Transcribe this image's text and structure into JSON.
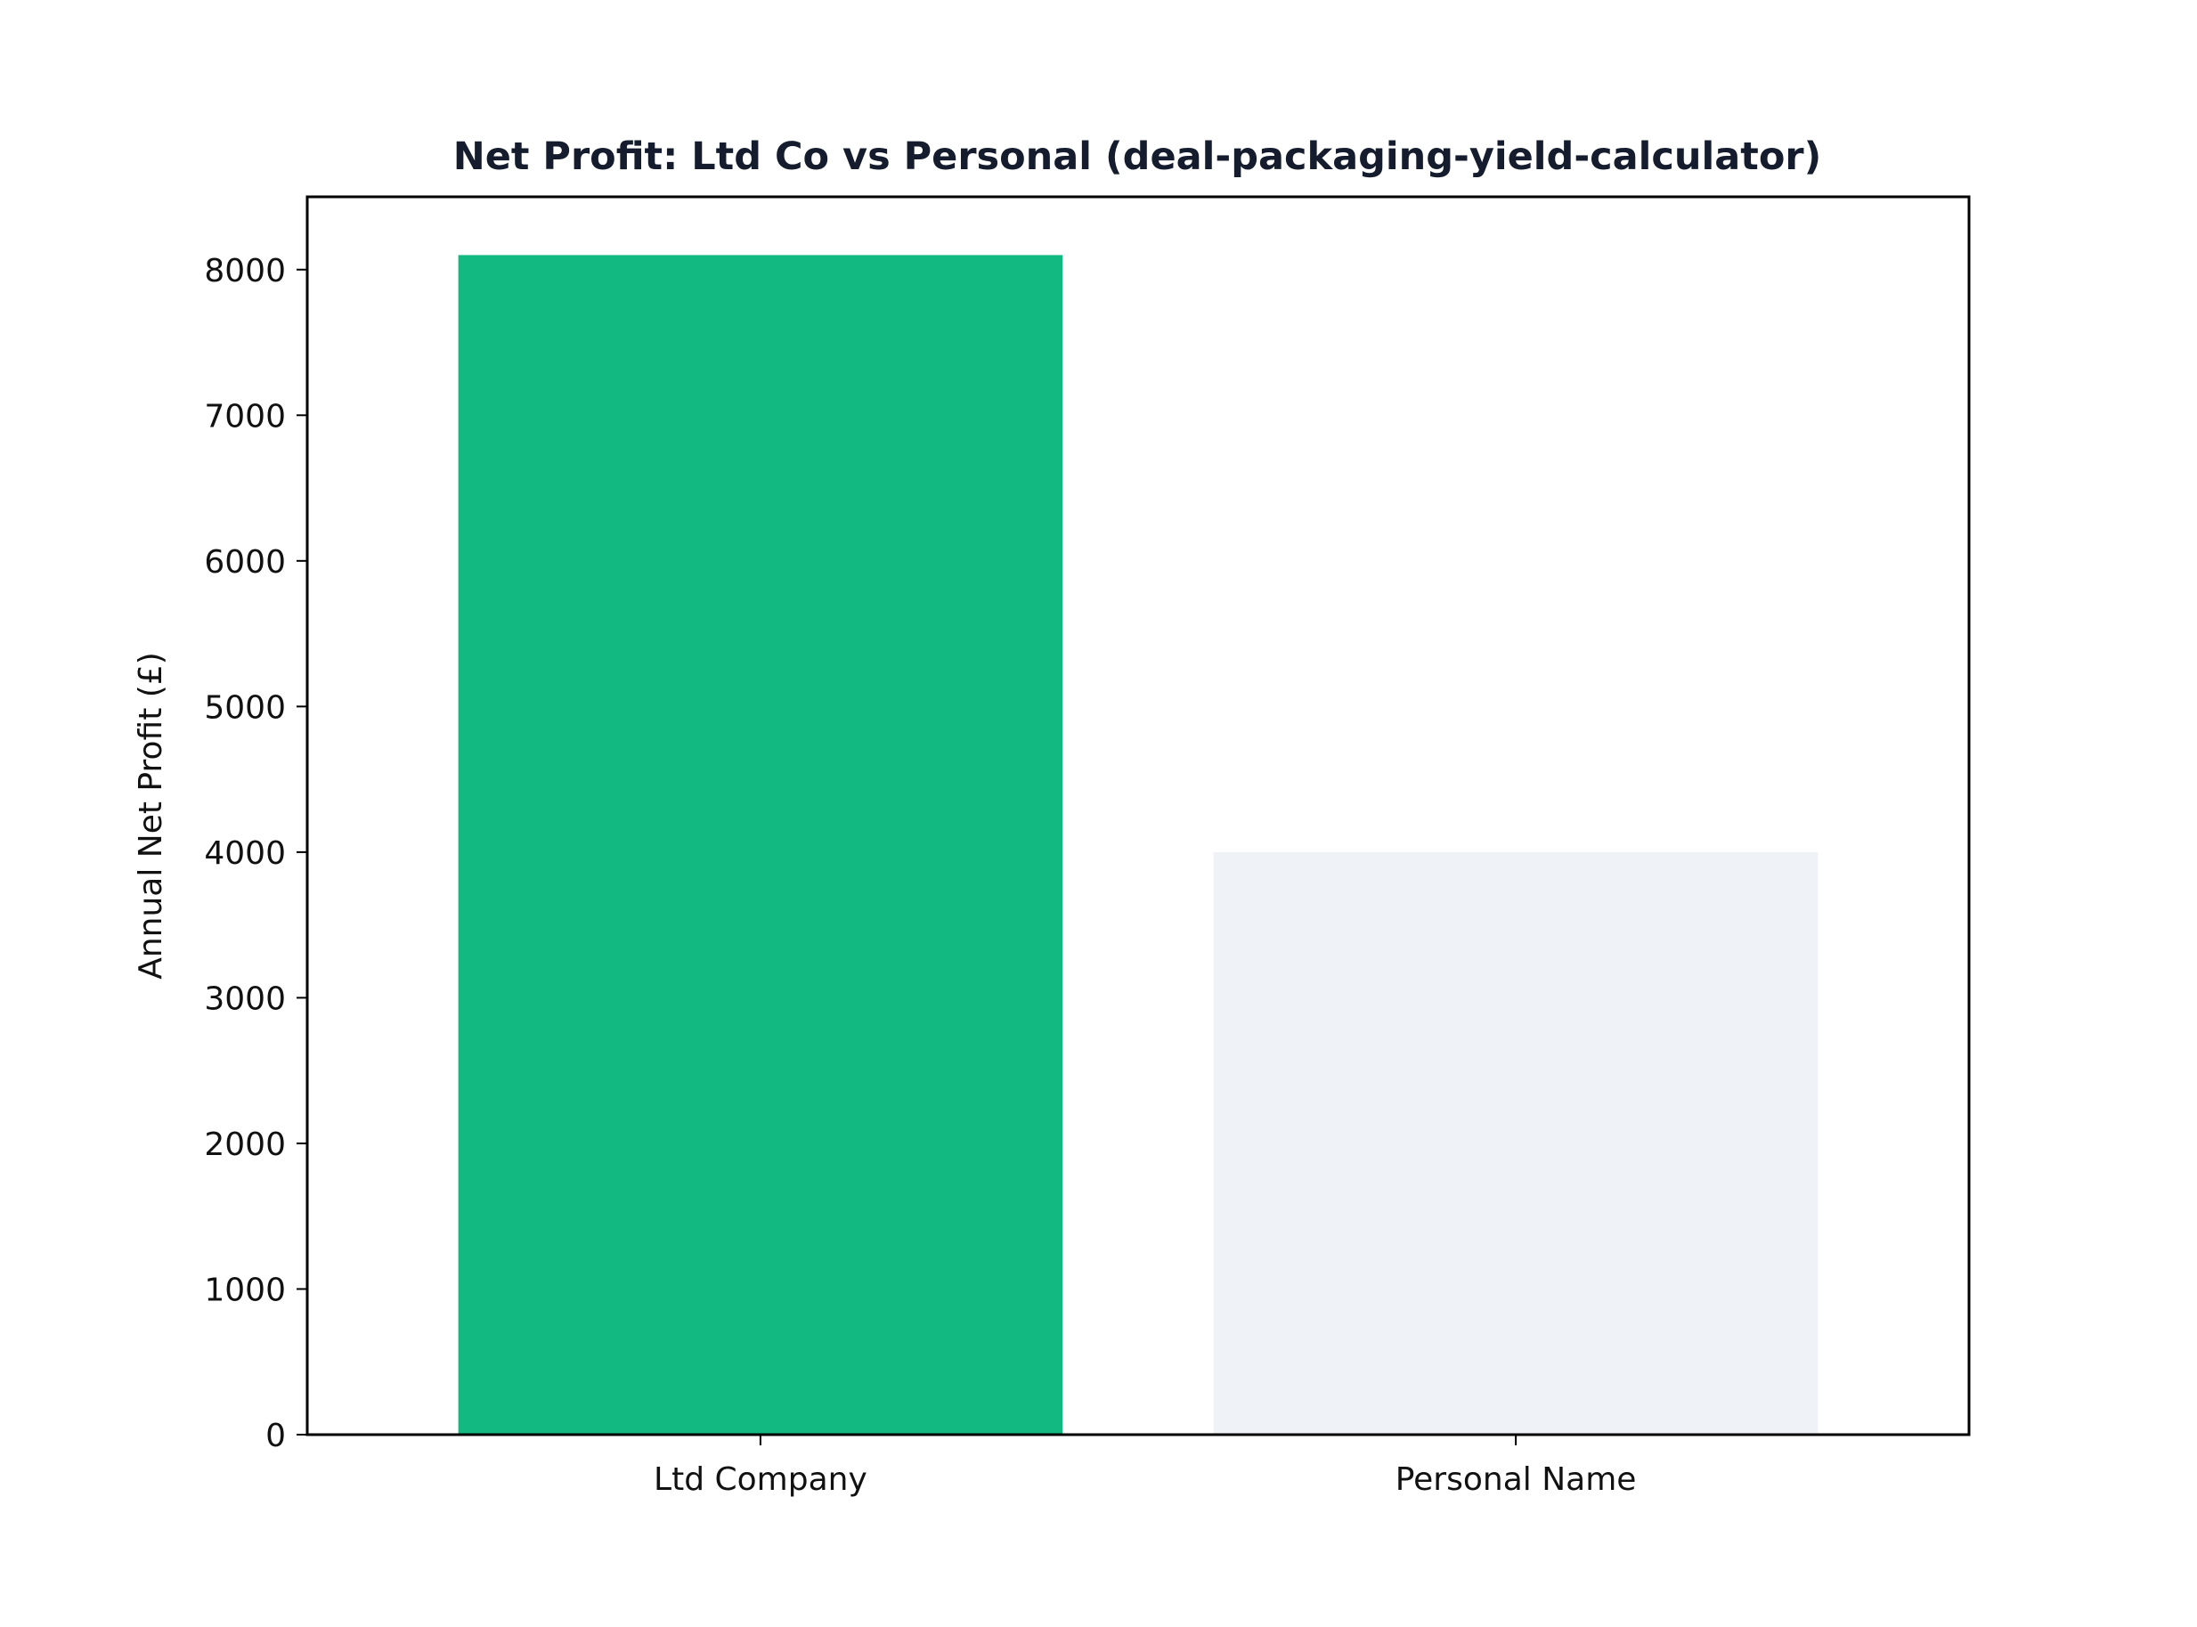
{
  "chart_data": {
    "type": "bar",
    "title": "Net Profit: Ltd Co vs Personal (deal-packaging-yield-calculator)",
    "xlabel": "",
    "ylabel": "Annual Net Profit (£)",
    "categories": [
      "Ltd Company",
      "Personal Name"
    ],
    "values": [
      8100,
      4000
    ],
    "bar_colors": [
      "#12b981",
      "#eff2f7"
    ],
    "ylim": [
      0,
      8500
    ],
    "yticks": [
      0,
      1000,
      2000,
      3000,
      4000,
      5000,
      6000,
      7000,
      8000
    ],
    "ytick_labels": [
      "0",
      "1000",
      "2000",
      "3000",
      "4000",
      "5000",
      "6000",
      "7000",
      "8000"
    ],
    "grid": false,
    "legend": "none",
    "title_color": "#141c2e"
  }
}
